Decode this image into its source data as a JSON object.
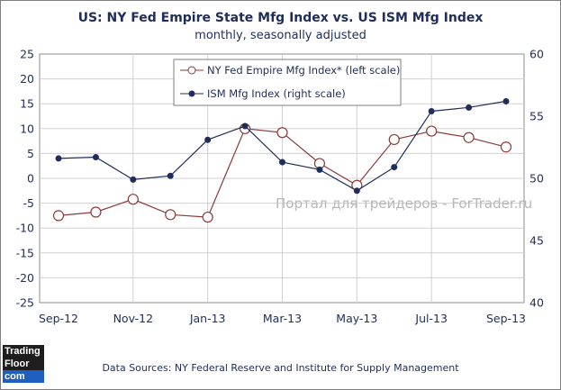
{
  "chart_data": {
    "type": "line",
    "title": "US: NY Fed Empire State Mfg Index vs. US ISM Mfg Index",
    "subtitle": "monthly, seasonally adjusted",
    "categories": [
      "Sep-12",
      "Oct-12",
      "Nov-12",
      "Dec-12",
      "Jan-13",
      "Feb-13",
      "Mar-13",
      "Apr-13",
      "May-13",
      "Jun-13",
      "Jul-13",
      "Aug-13",
      "Sep-13"
    ],
    "x_tick_labels": [
      "Sep-12",
      "Nov-12",
      "Jan-13",
      "Mar-13",
      "May-13",
      "Jul-13",
      "Sep-13"
    ],
    "left_axis": {
      "ylim": [
        -25,
        25
      ],
      "ticks": [
        25,
        20,
        15,
        10,
        5,
        0,
        -5,
        -10,
        -15,
        -20,
        -25
      ]
    },
    "right_axis": {
      "ylim": [
        40,
        60
      ],
      "ticks": [
        60,
        55,
        50,
        45,
        40
      ]
    },
    "series": [
      {
        "name": "NY Fed Empire Mfg Index* (left scale)",
        "axis": "left",
        "marker": "hollow-circle",
        "color": "#8b3a3a",
        "values": [
          -7.5,
          -6.8,
          -4.2,
          -7.3,
          -7.8,
          10.0,
          9.2,
          3.0,
          -1.4,
          7.8,
          9.5,
          8.2,
          6.3
        ]
      },
      {
        "name": "ISM Mfg Index (right scale)",
        "axis": "right",
        "marker": "filled-circle",
        "color": "#1f2d5a",
        "values": [
          51.6,
          51.7,
          49.9,
          50.2,
          53.1,
          54.2,
          51.3,
          50.7,
          49.0,
          50.9,
          55.4,
          55.7,
          56.2
        ]
      }
    ],
    "grid": true,
    "legend": "top-center"
  },
  "source_text": "Data Sources: NY Federal Reserve and Institute for Supply Management",
  "watermark_text": "Портал для трейдеров - ForTrader.ru",
  "logo": {
    "line1": "Trading",
    "line2": "Floor",
    "line3": "com"
  }
}
